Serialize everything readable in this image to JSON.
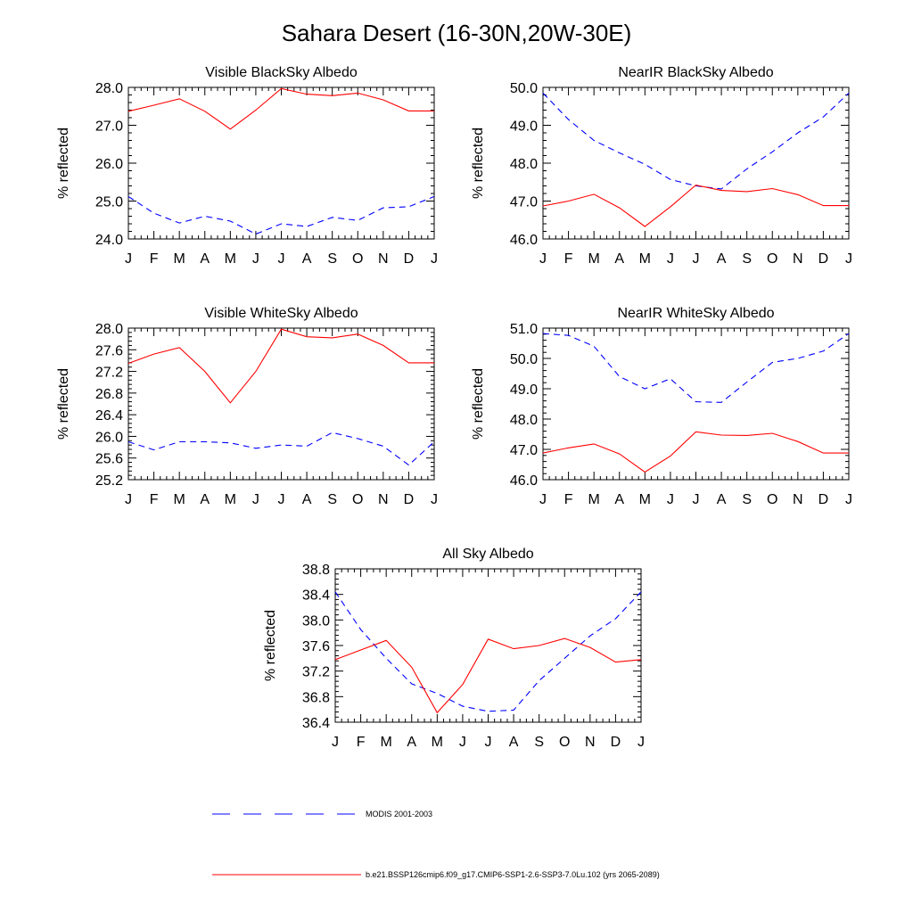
{
  "page": {
    "title": "Sahara Desert (16-30N,20W-30E)"
  },
  "legend": [
    {
      "label": "MODIS 2001-2003",
      "color": "#0000ff",
      "dashed": true
    },
    {
      "label": "b.e21.BSSP126cmip6.f09_g17.CMIP6-SSP1-2.6-SSP3-7.0Lu.102 (yrs 2065-2089)",
      "color": "#ff0000",
      "dashed": false
    }
  ],
  "chart_data": [
    {
      "type": "line",
      "title": "Visible BlackSky Albedo",
      "ylabel": "% reflected",
      "x": [
        "J",
        "F",
        "M",
        "A",
        "M",
        "J",
        "J",
        "A",
        "S",
        "O",
        "N",
        "D",
        "J"
      ],
      "ylim": [
        24.0,
        28.0
      ],
      "yticks": [
        "24.0",
        "25.0",
        "26.0",
        "27.0",
        "28.0"
      ],
      "series": [
        {
          "name": "MODIS 2001-2003",
          "color": "#0000ff",
          "dashed": true,
          "values": [
            25.12,
            24.68,
            24.42,
            24.6,
            24.47,
            24.13,
            24.4,
            24.33,
            24.57,
            24.49,
            24.82,
            24.85,
            25.12
          ]
        },
        {
          "name": "b.e21.BSSP126cmip6.f09_g17.CMIP6-SSP1-2.6-SSP3-7.0Lu.102 (yrs 2065-2089)",
          "color": "#ff0000",
          "dashed": false,
          "values": [
            27.37,
            27.53,
            27.7,
            27.37,
            26.9,
            27.4,
            27.97,
            27.82,
            27.78,
            27.85,
            27.67,
            27.38,
            27.38
          ]
        }
      ]
    },
    {
      "type": "line",
      "title": "NearIR BlackSky Albedo",
      "ylabel": "% reflected",
      "x": [
        "J",
        "F",
        "M",
        "A",
        "M",
        "J",
        "J",
        "A",
        "S",
        "O",
        "N",
        "D",
        "J"
      ],
      "ylim": [
        46.0,
        50.0
      ],
      "yticks": [
        "46.0",
        "47.0",
        "48.0",
        "49.0",
        "50.0"
      ],
      "series": [
        {
          "name": "MODIS 2001-2003",
          "color": "#0000ff",
          "dashed": true,
          "values": [
            49.85,
            49.15,
            48.6,
            48.27,
            47.97,
            47.57,
            47.4,
            47.32,
            47.85,
            48.3,
            48.8,
            49.22,
            49.85
          ]
        },
        {
          "name": "b.e21.BSSP126cmip6.f09_g17.CMIP6-SSP1-2.6-SSP3-7.0Lu.102 (yrs 2065-2089)",
          "color": "#ff0000",
          "dashed": false,
          "values": [
            46.87,
            47.0,
            47.18,
            46.82,
            46.33,
            46.85,
            47.42,
            47.28,
            47.25,
            47.33,
            47.17,
            46.88,
            46.88
          ]
        }
      ]
    },
    {
      "type": "line",
      "title": "Visible WhiteSky Albedo",
      "ylabel": "% reflected",
      "x": [
        "J",
        "F",
        "M",
        "A",
        "M",
        "J",
        "J",
        "A",
        "S",
        "O",
        "N",
        "D",
        "J"
      ],
      "ylim": [
        25.2,
        28.0
      ],
      "yticks": [
        "25.2",
        "25.6",
        "26.0",
        "26.4",
        "26.8",
        "27.2",
        "27.6",
        "28.0"
      ],
      "series": [
        {
          "name": "MODIS 2001-2003",
          "color": "#0000ff",
          "dashed": true,
          "values": [
            25.9,
            25.75,
            25.9,
            25.9,
            25.88,
            25.78,
            25.84,
            25.82,
            26.07,
            25.96,
            25.82,
            25.47,
            25.9
          ]
        },
        {
          "name": "b.e21.BSSP126cmip6.f09_g17.CMIP6-SSP1-2.6-SSP3-7.0Lu.102 (yrs 2065-2089)",
          "color": "#ff0000",
          "dashed": false,
          "values": [
            27.35,
            27.52,
            27.64,
            27.2,
            26.62,
            27.2,
            27.98,
            27.84,
            27.82,
            27.89,
            27.68,
            27.36,
            27.36
          ]
        }
      ]
    },
    {
      "type": "line",
      "title": "NearIR WhiteSky Albedo",
      "ylabel": "% reflected",
      "x": [
        "J",
        "F",
        "M",
        "A",
        "M",
        "J",
        "J",
        "A",
        "S",
        "O",
        "N",
        "D",
        "J"
      ],
      "ylim": [
        46.0,
        51.0
      ],
      "yticks": [
        "46.0",
        "47.0",
        "48.0",
        "49.0",
        "50.0",
        "51.0"
      ],
      "series": [
        {
          "name": "MODIS 2001-2003",
          "color": "#0000ff",
          "dashed": true,
          "values": [
            50.82,
            50.76,
            50.4,
            49.4,
            49.0,
            49.33,
            48.57,
            48.55,
            49.22,
            49.87,
            50.0,
            50.24,
            50.82
          ]
        },
        {
          "name": "b.e21.BSSP126cmip6.f09_g17.CMIP6-SSP1-2.6-SSP3-7.0Lu.102 (yrs 2065-2089)",
          "color": "#ff0000",
          "dashed": false,
          "values": [
            46.88,
            47.05,
            47.18,
            46.85,
            46.25,
            46.78,
            47.58,
            47.47,
            47.46,
            47.53,
            47.26,
            46.88,
            46.88
          ]
        }
      ]
    },
    {
      "type": "line",
      "title": "All Sky Albedo",
      "ylabel": "% reflected",
      "x": [
        "J",
        "F",
        "M",
        "A",
        "M",
        "J",
        "J",
        "A",
        "S",
        "O",
        "N",
        "D",
        "J"
      ],
      "ylim": [
        36.4,
        38.8
      ],
      "yticks": [
        "36.4",
        "36.8",
        "37.2",
        "37.6",
        "38.0",
        "38.4",
        "38.8"
      ],
      "series": [
        {
          "name": "MODIS 2001-2003",
          "color": "#0000ff",
          "dashed": true,
          "values": [
            38.44,
            37.85,
            37.4,
            37.0,
            36.85,
            36.65,
            36.57,
            36.59,
            37.05,
            37.4,
            37.75,
            38.02,
            38.44
          ]
        },
        {
          "name": "b.e21.BSSP126cmip6.f09_g17.CMIP6-SSP1-2.6-SSP3-7.0Lu.102 (yrs 2065-2089)",
          "color": "#ff0000",
          "dashed": false,
          "values": [
            37.38,
            37.53,
            37.68,
            37.26,
            36.55,
            36.99,
            37.7,
            37.55,
            37.6,
            37.71,
            37.57,
            37.34,
            37.38
          ]
        }
      ]
    }
  ]
}
